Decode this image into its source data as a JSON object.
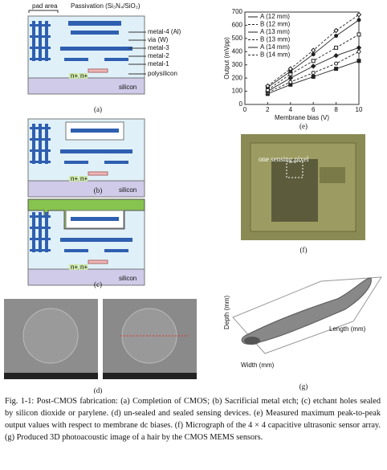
{
  "chart_data": {
    "type": "line",
    "x_label": "Membrane bias (V)",
    "y_label": "Output (mVpp)",
    "x": [
      2,
      4,
      6,
      8,
      10
    ],
    "series": [
      {
        "name": "A (12 mm)",
        "color": "#222222",
        "values": [
          80,
          150,
          210,
          270,
          330
        ]
      },
      {
        "name": "B (12 mm)",
        "color": "#222222",
        "values": [
          90,
          170,
          240,
          310,
          400
        ]
      },
      {
        "name": "A (13 mm)",
        "color": "#222222",
        "values": [
          100,
          200,
          290,
          370,
          430
        ]
      },
      {
        "name": "B (13 mm)",
        "color": "#222222",
        "values": [
          110,
          230,
          330,
          430,
          530
        ]
      },
      {
        "name": "A (14 mm)",
        "color": "#222222",
        "values": [
          130,
          250,
          380,
          520,
          640
        ]
      },
      {
        "name": "B (14 mm)",
        "color": "#222222",
        "values": [
          140,
          270,
          410,
          560,
          680
        ]
      }
    ],
    "xlim": [
      0,
      10
    ],
    "xticks": [
      0,
      2,
      4,
      6,
      8,
      10
    ],
    "ylim": [
      0,
      700
    ],
    "yticks": [
      0,
      100,
      200,
      300,
      400,
      500,
      600,
      700
    ],
    "grid": false
  },
  "panels": {
    "a": {
      "label": "(a)",
      "pad_area": "pad area",
      "passivation": "Passivation (Si₃N₄/SiO₂)",
      "metal4": "metal-4 (Al)",
      "via": "via (W)",
      "metal3": "metal-3",
      "metal2": "metal-2",
      "metal1": "metal-1",
      "polysilicon": "polysilicon",
      "silicon": "silicon",
      "n_plus": "n+"
    },
    "b": {
      "label": "(b)",
      "silicon": "silicon",
      "n_plus": "n+"
    },
    "c": {
      "label": "(c)",
      "silicon": "silicon",
      "n_plus": "n+"
    },
    "d": {
      "label": "(d)"
    },
    "e": {
      "label": "(e)"
    },
    "f": {
      "label": "(f)",
      "annotation": "one sensing pixel"
    },
    "g": {
      "label": "(g)",
      "x_label": "Length (mm)",
      "y_label": "Width (mm)",
      "z_label": "Depth (mm)"
    }
  },
  "caption": "Fig. 1-1: Post-CMOS fabrication: (a) Completion of CMOS; (b) Sacrificial metal etch; (c) etchant holes sealed by silicon dioxide or parylene. (d) un-sealed and sealed sensing devices. (e) Measured maximum peak-to-peak output values with respect to membrane dc biases. (f) Micrograph of the 4 × 4 capacitive ultrasonic sensor array. (g) Produced 3D photoacoustic image of a hair by the CMOS MEMS sensors."
}
